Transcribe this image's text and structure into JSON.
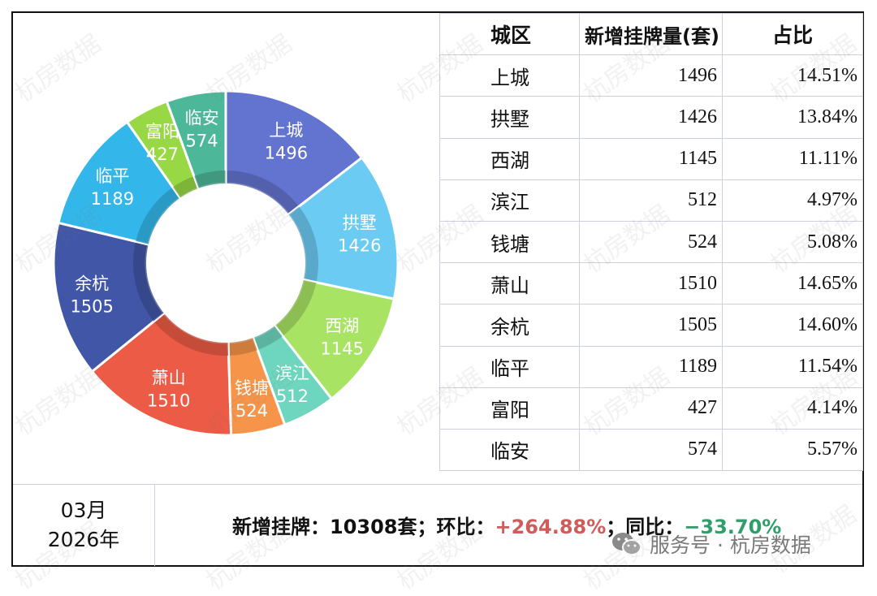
{
  "watermark": "杭房数据",
  "table": {
    "headers": [
      "城区",
      "新增挂牌量(套)",
      "占比"
    ],
    "rows": [
      [
        "上城",
        "1496",
        "14.51%"
      ],
      [
        "拱墅",
        "1426",
        "13.84%"
      ],
      [
        "西湖",
        "1145",
        "11.11%"
      ],
      [
        "滨江",
        "512",
        "4.97%"
      ],
      [
        "钱塘",
        "524",
        "5.08%"
      ],
      [
        "萧山",
        "1510",
        "14.65%"
      ],
      [
        "余杭",
        "1505",
        "14.60%"
      ],
      [
        "临平",
        "1189",
        "11.54%"
      ],
      [
        "富阳",
        "427",
        "4.14%"
      ],
      [
        "临安",
        "574",
        "5.57%"
      ]
    ]
  },
  "period": {
    "month": "03月",
    "year": "2026年"
  },
  "summary": {
    "label_new": "新增挂牌：",
    "total": "10308套",
    "sep1": "；",
    "label_mom": "环比：",
    "mom": "+264.88%",
    "sep2": "；",
    "label_yoy": "同比：",
    "yoy": "−33.70%"
  },
  "brand": {
    "text": "服务号 · 杭房数据",
    "icon": "wechat-icon"
  },
  "chart_data": {
    "type": "donut",
    "categories": [
      "上城",
      "拱墅",
      "西湖",
      "滨江",
      "钱塘",
      "萧山",
      "余杭",
      "临平",
      "富阳",
      "临安"
    ],
    "values": [
      1496,
      1426,
      1145,
      512,
      524,
      1510,
      1505,
      1189,
      427,
      574
    ],
    "colors": [
      "#6373d0",
      "#6ccbf2",
      "#a8e364",
      "#6ed6bf",
      "#f6954a",
      "#ec5b45",
      "#4256a8",
      "#33b7ea",
      "#97d844",
      "#4db799"
    ]
  }
}
